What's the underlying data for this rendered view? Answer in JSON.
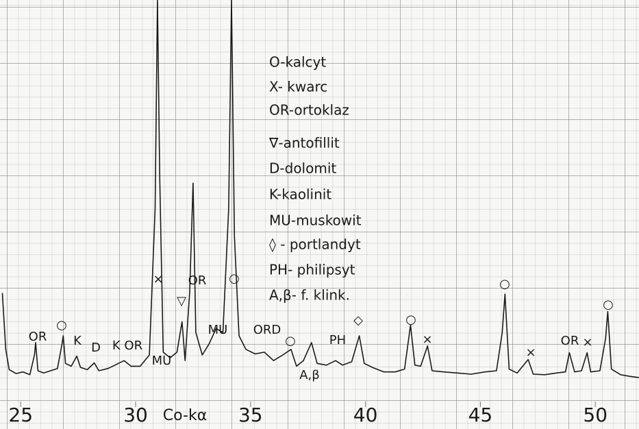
{
  "chart_data": {
    "type": "line",
    "color": "#1a1a1a",
    "x_label": "Co-kα",
    "xlim": [
      24.1,
      51.9
    ],
    "xticks": [
      25,
      30,
      35,
      40,
      45,
      50
    ],
    "ylim": [
      0,
      7.2
    ],
    "x": [
      24.2,
      24.35,
      24.5,
      24.8,
      25.1,
      25.4,
      25.6,
      25.65,
      25.75,
      26.0,
      26.3,
      26.6,
      26.8,
      26.85,
      26.95,
      27.2,
      27.44,
      27.6,
      27.9,
      28.2,
      28.4,
      28.8,
      29.1,
      29.5,
      29.8,
      30.2,
      30.6,
      30.85,
      30.95,
      31.05,
      31.2,
      31.5,
      31.8,
      32.02,
      32.15,
      32.35,
      32.5,
      32.62,
      32.9,
      33.2,
      33.5,
      33.8,
      34.05,
      34.17,
      34.3,
      34.5,
      34.8,
      35.2,
      35.6,
      36.0,
      36.4,
      36.76,
      37.0,
      37.3,
      37.65,
      37.9,
      38.3,
      38.7,
      39.0,
      39.4,
      39.73,
      39.95,
      40.3,
      40.8,
      41.3,
      41.7,
      41.96,
      42.15,
      42.4,
      42.7,
      42.9,
      43.4,
      44.0,
      44.6,
      45.2,
      45.7,
      45.95,
      46.07,
      46.25,
      46.6,
      47.08,
      47.3,
      47.8,
      48.3,
      48.7,
      48.87,
      49.1,
      49.4,
      49.64,
      49.8,
      50.2,
      50.45,
      50.54,
      50.7,
      51.1,
      51.5,
      51.9
    ],
    "values": [
      2.0,
      1.0,
      0.64,
      0.57,
      0.6,
      0.55,
      0.9,
      1.12,
      0.62,
      0.58,
      0.62,
      0.66,
      1.1,
      1.24,
      0.75,
      0.7,
      0.88,
      0.68,
      0.64,
      0.76,
      0.62,
      0.66,
      0.72,
      0.8,
      0.7,
      0.7,
      0.9,
      3.5,
      7.2,
      4.0,
      0.95,
      0.85,
      0.95,
      1.49,
      0.8,
      2.0,
      3.95,
      1.3,
      0.9,
      1.1,
      1.37,
      1.3,
      3.5,
      7.2,
      3.0,
      1.24,
      1.0,
      0.92,
      0.95,
      0.8,
      0.9,
      1.0,
      0.7,
      0.8,
      1.12,
      0.75,
      0.72,
      0.8,
      0.72,
      0.78,
      1.24,
      0.75,
      0.68,
      0.6,
      0.6,
      0.65,
      1.43,
      0.72,
      0.7,
      1.06,
      0.62,
      0.6,
      0.58,
      0.56,
      0.6,
      0.62,
      1.3,
      1.98,
      0.65,
      0.58,
      0.82,
      0.56,
      0.55,
      0.58,
      0.6,
      0.94,
      0.6,
      0.62,
      0.94,
      0.6,
      0.62,
      1.2,
      1.67,
      0.65,
      0.55,
      0.52,
      0.5
    ],
    "legend": [
      "O-kalcyt",
      "X- kwarc",
      "OR-ortoklaz",
      "∇-antofillit",
      "D-dolomit",
      "K-kaolinit",
      "MU-muskowit",
      "◊ - portlandyt",
      "PH- philipsyt",
      "A,β- f. klink."
    ],
    "annotations": [
      "OR",
      "○",
      "K",
      "D",
      "K OR",
      "MU",
      "×",
      "▽",
      "OR",
      "MU",
      "○",
      "ORD",
      "○",
      "A,β",
      "PH",
      "◇",
      "○",
      "×",
      "○",
      "×",
      "OR",
      "×",
      "○"
    ]
  }
}
